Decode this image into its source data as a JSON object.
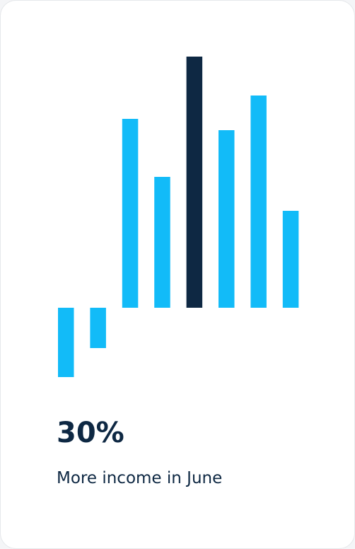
{
  "chart_data": {
    "type": "bar",
    "headline": "30%",
    "subtitle": "More income in June",
    "categories": [
      null,
      null,
      null,
      null,
      null,
      null,
      null,
      null
    ],
    "values": [
      -98,
      -57,
      267,
      185,
      355,
      251,
      300,
      137
    ],
    "colors": [
      "#12bbf8",
      "#12bbf8",
      "#12bbf8",
      "#12bbf8",
      "#0e2843",
      "#12bbf8",
      "#12bbf8",
      "#12bbf8"
    ],
    "ylim": [
      -100,
      360
    ]
  }
}
